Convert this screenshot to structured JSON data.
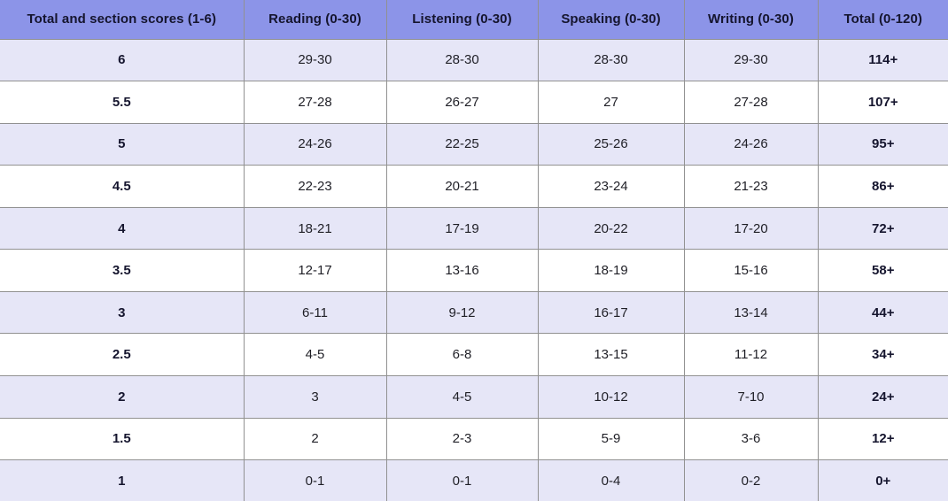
{
  "chart_data": {
    "type": "table",
    "columns": [
      "Total and section scores (1-6)",
      "Reading (0-30)",
      "Listening (0-30)",
      "Speaking (0-30)",
      "Writing (0-30)",
      "Total (0-120)"
    ],
    "rows": [
      [
        "6",
        "29-30",
        "28-30",
        "28-30",
        "29-30",
        "114+"
      ],
      [
        "5.5",
        "27-28",
        "26-27",
        "27",
        "27-28",
        "107+"
      ],
      [
        "5",
        "24-26",
        "22-25",
        "25-26",
        "24-26",
        "95+"
      ],
      [
        "4.5",
        "22-23",
        "20-21",
        "23-24",
        "21-23",
        "86+"
      ],
      [
        "4",
        "18-21",
        "17-19",
        "20-22",
        "17-20",
        "72+"
      ],
      [
        "3.5",
        "12-17",
        "13-16",
        "18-19",
        "15-16",
        "58+"
      ],
      [
        "3",
        "6-11",
        "9-12",
        "16-17",
        "13-14",
        "44+"
      ],
      [
        "2.5",
        "4-5",
        "6-8",
        "13-15",
        "11-12",
        "34+"
      ],
      [
        "2",
        "3",
        "4-5",
        "10-12",
        "7-10",
        "24+"
      ],
      [
        "1.5",
        "2",
        "2-3",
        "5-9",
        "3-6",
        "12+"
      ],
      [
        "1",
        "0-1",
        "0-1",
        "0-4",
        "0-2",
        "0+"
      ]
    ]
  },
  "colors": {
    "header_bg": "#8c94e8",
    "header_text": "#15152e",
    "row_bg": "#ffffff",
    "row_alt_bg": "#e6e6f7",
    "body_text": "#1f1f26",
    "border": "#919191"
  }
}
